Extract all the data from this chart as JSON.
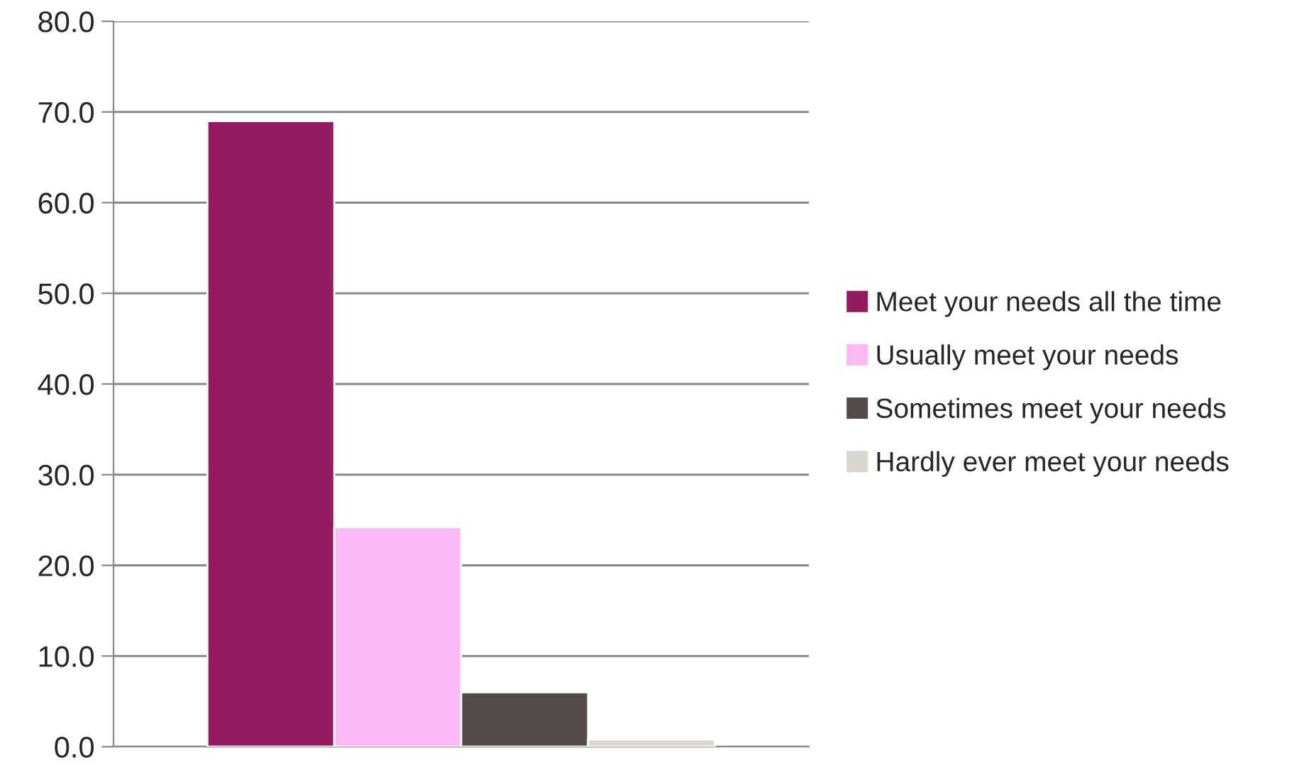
{
  "chart_data": {
    "type": "bar",
    "categories": [
      null
    ],
    "series": [
      {
        "name": "Meet your needs all the time",
        "color": "#961a60",
        "values": [
          69.0
        ]
      },
      {
        "name": "Usually meet your needs",
        "color": "#f9b9f6",
        "values": [
          24.2
        ]
      },
      {
        "name": "Sometimes meet your needs",
        "color": "#554b48",
        "values": [
          6.0
        ]
      },
      {
        "name": "Hardly ever meet your needs",
        "color": "#dbd5cf",
        "values": [
          0.8
        ]
      }
    ],
    "ylim": [
      0,
      80
    ],
    "yticks": [
      {
        "value": 0,
        "label": "0.0"
      },
      {
        "value": 10,
        "label": "10.0"
      },
      {
        "value": 20,
        "label": "20.0"
      },
      {
        "value": 30,
        "label": "30.0"
      },
      {
        "value": 40,
        "label": "40.0"
      },
      {
        "value": 50,
        "label": "50.0"
      },
      {
        "value": 60,
        "label": "60.0"
      },
      {
        "value": 70,
        "label": "70.0"
      },
      {
        "value": 80,
        "label": "80.0"
      }
    ],
    "grid": "y",
    "legend": "right"
  }
}
